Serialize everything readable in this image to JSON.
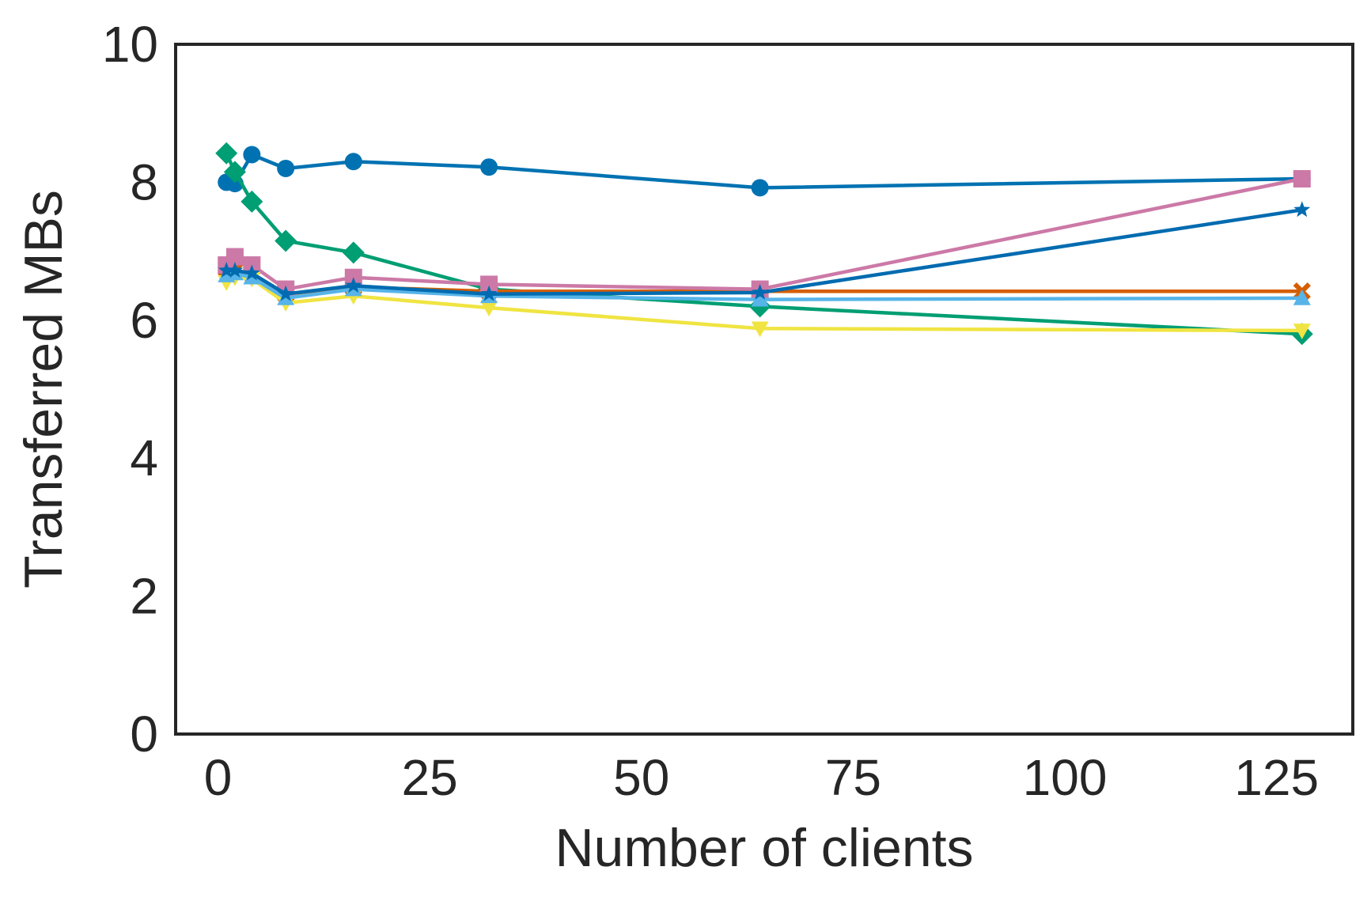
{
  "chart_data": {
    "type": "line",
    "title": "",
    "xlabel": "Number of clients",
    "ylabel": "Transferred MBs",
    "xlim": [
      -5,
      134
    ],
    "ylim": [
      0,
      10
    ],
    "xticks": [
      0,
      25,
      50,
      75,
      100,
      125
    ],
    "yticks": [
      0,
      2,
      4,
      6,
      8,
      10
    ],
    "grid": false,
    "x": [
      1,
      2,
      4,
      8,
      16,
      32,
      64,
      128
    ],
    "series": [
      {
        "color": "#0072b2",
        "marker": "circle",
        "values": [
          8.0,
          7.98,
          8.4,
          8.2,
          8.3,
          8.22,
          7.92,
          8.05
        ]
      },
      {
        "color": "#009e73",
        "marker": "diamond",
        "values": [
          8.42,
          8.15,
          7.72,
          7.15,
          6.98,
          6.45,
          6.2,
          5.8
        ]
      },
      {
        "color": "#d55e00",
        "marker": "x",
        "values": [
          6.75,
          6.72,
          6.68,
          6.38,
          6.48,
          6.42,
          6.42,
          6.42
        ]
      },
      {
        "color": "#cc79a7",
        "marker": "square",
        "values": [
          6.8,
          6.92,
          6.8,
          6.45,
          6.62,
          6.52,
          6.45,
          8.05
        ]
      },
      {
        "color": "#f0e442",
        "marker": "triangle-down",
        "values": [
          6.55,
          6.62,
          6.6,
          6.25,
          6.35,
          6.18,
          5.88,
          5.85
        ]
      },
      {
        "color": "#56b4e9",
        "marker": "triangle-up",
        "values": [
          6.65,
          6.68,
          6.62,
          6.32,
          6.45,
          6.35,
          6.3,
          6.32
        ]
      },
      {
        "color": "#006bb0",
        "marker": "star",
        "values": [
          6.72,
          6.72,
          6.68,
          6.38,
          6.5,
          6.38,
          6.4,
          7.6
        ]
      }
    ]
  }
}
